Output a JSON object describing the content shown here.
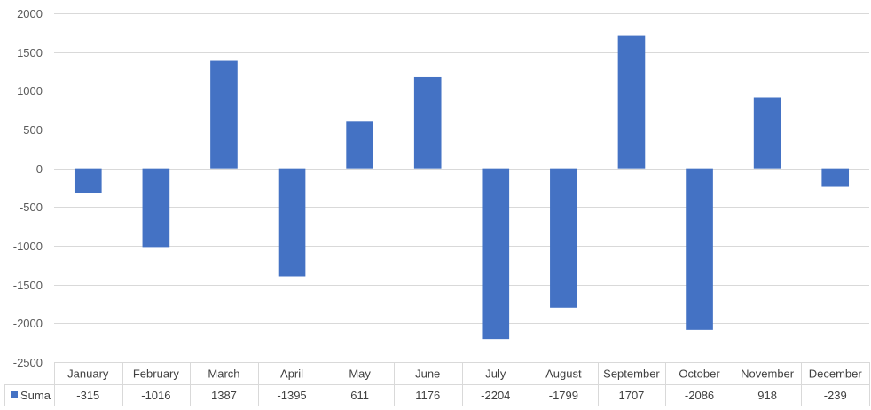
{
  "chart_data": {
    "type": "bar",
    "categories": [
      "January",
      "February",
      "March",
      "April",
      "May",
      "June",
      "July",
      "August",
      "September",
      "October",
      "November",
      "December"
    ],
    "series": [
      {
        "name": "Suma",
        "values": [
          -315,
          -1016,
          1387,
          -1395,
          611,
          1176,
          -2204,
          -1799,
          1707,
          -2086,
          918,
          -239
        ],
        "color": "#4472C4"
      }
    ],
    "value_labels": [
      "-315",
      "-1016",
      "1387",
      "-1395",
      "611",
      "1176",
      "-2204",
      "-1799",
      "1707",
      "-2086",
      "918",
      "-239"
    ],
    "y_ticks": [
      2000,
      1500,
      1000,
      500,
      0,
      -500,
      -1000,
      -1500,
      -2000,
      -2500
    ],
    "ylim": [
      -2500,
      2000
    ],
    "grid": true,
    "legend": "data-table-left",
    "data_table": true,
    "title": "",
    "xlabel": "",
    "ylabel": ""
  }
}
